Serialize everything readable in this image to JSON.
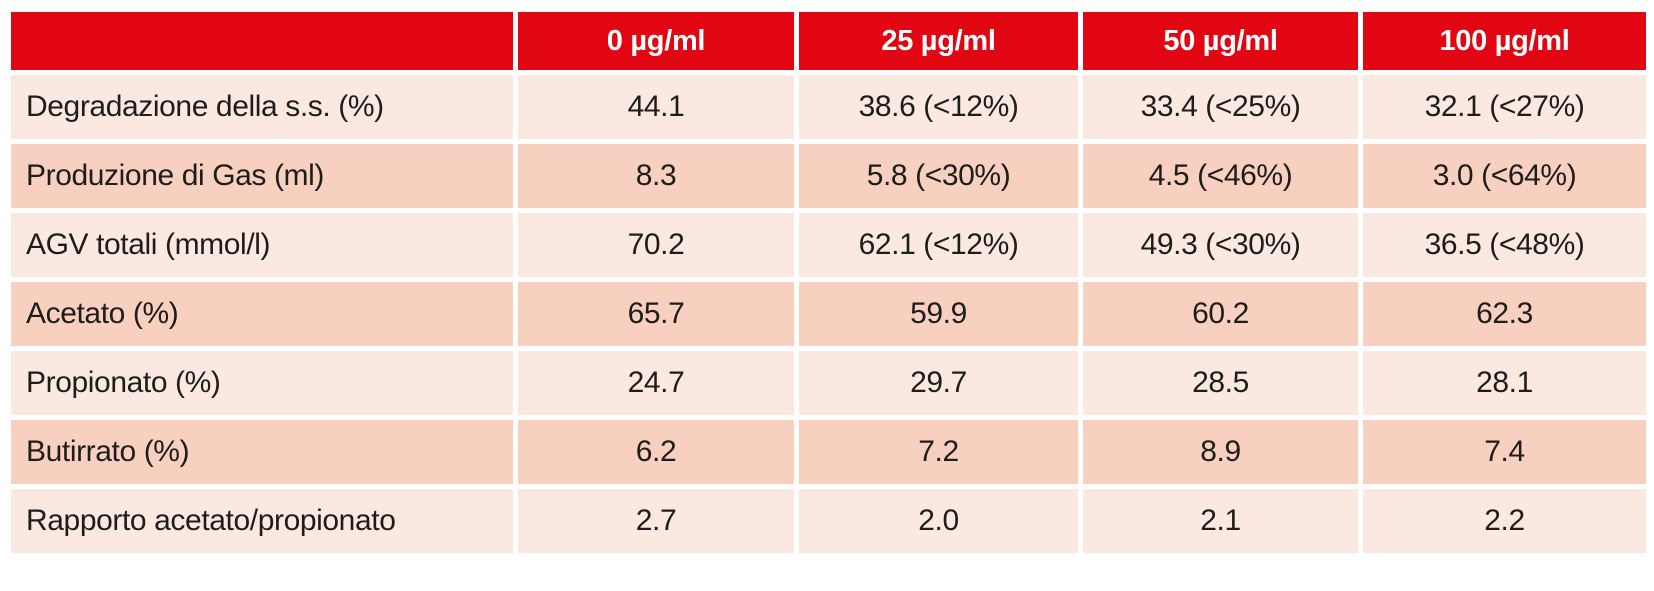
{
  "chart_data": {
    "type": "table",
    "title": "",
    "columns": [
      "",
      "0 µg/ml",
      "25 µg/ml",
      "50 µg/ml",
      "100 µg/ml"
    ],
    "rows": [
      {
        "label": "Degradazione della s.s. (%)",
        "values": [
          "44.1",
          "38.6 (<12%)",
          "33.4 (<25%)",
          "32.1 (<27%)"
        ]
      },
      {
        "label": "Produzione di Gas (ml)",
        "values": [
          "8.3",
          "5.8 (<30%)",
          "4.5 (<46%)",
          "3.0 (<64%)"
        ]
      },
      {
        "label": "AGV totali (mmol/l)",
        "values": [
          "70.2",
          "62.1 (<12%)",
          "49.3 (<30%)",
          "36.5 (<48%)"
        ]
      },
      {
        "label": "Acetato (%)",
        "values": [
          "65.7",
          "59.9",
          "60.2",
          "62.3"
        ]
      },
      {
        "label": "Propionato (%)",
        "values": [
          "24.7",
          "29.7",
          "28.5",
          "28.1"
        ]
      },
      {
        "label": "Butirrato (%)",
        "values": [
          "6.2",
          "7.2",
          "8.9",
          "7.4"
        ]
      },
      {
        "label": "Rapporto acetato/propionato",
        "values": [
          "2.7",
          "2.0",
          "2.1",
          "2.2"
        ]
      }
    ],
    "colors": {
      "header_bg": "#e20613",
      "header_text": "#ffffff",
      "row_light": "#fbe9e1",
      "row_dark": "#f8d0c0",
      "body_text": "#1d1d1b"
    },
    "layout": {
      "row_stripe_order": "light,dark,light,dark,light,dark,light",
      "first_column_align": "left",
      "data_columns_align": "center"
    }
  }
}
